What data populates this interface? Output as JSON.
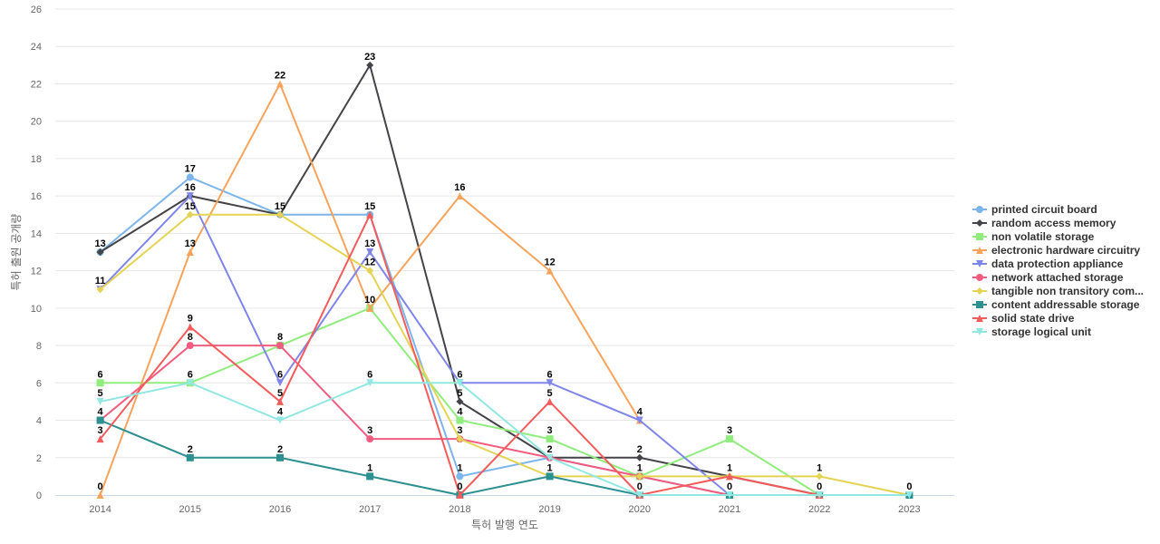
{
  "chart_data": {
    "type": "line",
    "xlabel": "특허 발행 연도",
    "ylabel": "특허 출원 공개량",
    "ylim": [
      0,
      26
    ],
    "yticks": [
      0,
      2,
      4,
      6,
      8,
      10,
      12,
      14,
      16,
      18,
      20,
      22,
      24,
      26
    ],
    "categories": [
      "2014",
      "2015",
      "2016",
      "2017",
      "2018",
      "2019",
      "2020",
      "2021",
      "2022",
      "2023"
    ],
    "grid": true,
    "legend_position": "right",
    "series": [
      {
        "name": "printed circuit board",
        "color": "#7cb5ec",
        "marker": "circle",
        "values": [
          13,
          17,
          15,
          15,
          1,
          2,
          1,
          0,
          0,
          null
        ]
      },
      {
        "name": "random access memory",
        "color": "#434348",
        "marker": "diamond",
        "values": [
          13,
          16,
          15,
          23,
          5,
          2,
          2,
          1,
          0,
          null
        ]
      },
      {
        "name": "non volatile storage",
        "color": "#90ed7d",
        "marker": "square",
        "values": [
          6,
          6,
          8,
          10,
          4,
          3,
          1,
          3,
          0,
          null
        ]
      },
      {
        "name": "electronic hardware circuitry",
        "color": "#f7a35c",
        "marker": "triangle",
        "values": [
          0,
          13,
          22,
          10,
          16,
          12,
          4,
          null,
          null,
          null
        ]
      },
      {
        "name": "data protection appliance",
        "color": "#8085e9",
        "marker": "triangle-down",
        "values": [
          11,
          16,
          6,
          13,
          6,
          6,
          4,
          0,
          null,
          null
        ]
      },
      {
        "name": "network attached storage",
        "color": "#f15c80",
        "marker": "circle",
        "values": [
          4,
          8,
          8,
          3,
          3,
          2,
          1,
          0,
          null,
          null
        ]
      },
      {
        "name": "tangible non transitory com...",
        "color": "#e4d354",
        "marker": "diamond",
        "values": [
          11,
          15,
          15,
          12,
          3,
          1,
          1,
          1,
          1,
          0
        ]
      },
      {
        "name": "content addressable storage",
        "color": "#2b908f",
        "marker": "square",
        "values": [
          4,
          2,
          2,
          1,
          0,
          1,
          0,
          0,
          0,
          0
        ]
      },
      {
        "name": "solid state drive",
        "color": "#f45b5b",
        "marker": "triangle",
        "values": [
          3,
          9,
          5,
          15,
          0,
          5,
          0,
          1,
          0,
          null
        ]
      },
      {
        "name": "storage logical unit",
        "color": "#91e8e1",
        "marker": "triangle-down",
        "values": [
          5,
          6,
          4,
          6,
          6,
          2,
          0,
          0,
          0,
          0
        ]
      }
    ],
    "data_labels": [
      {
        "category": "2014",
        "value": 13,
        "text": "13"
      },
      {
        "category": "2014",
        "value": 11,
        "text": "11"
      },
      {
        "category": "2014",
        "value": 6,
        "text": "6"
      },
      {
        "category": "2014",
        "value": 5,
        "text": "5"
      },
      {
        "category": "2014",
        "value": 4,
        "text": "4"
      },
      {
        "category": "2014",
        "value": 3,
        "text": "3"
      },
      {
        "category": "2014",
        "value": 0,
        "text": "0"
      },
      {
        "category": "2015",
        "value": 17,
        "text": "17"
      },
      {
        "category": "2015",
        "value": 16,
        "text": "16"
      },
      {
        "category": "2015",
        "value": 15,
        "text": "15"
      },
      {
        "category": "2015",
        "value": 13,
        "text": "13"
      },
      {
        "category": "2015",
        "value": 9,
        "text": "9"
      },
      {
        "category": "2015",
        "value": 8,
        "text": "8"
      },
      {
        "category": "2015",
        "value": 6,
        "text": "6"
      },
      {
        "category": "2015",
        "value": 2,
        "text": "2"
      },
      {
        "category": "2016",
        "value": 22,
        "text": "22"
      },
      {
        "category": "2016",
        "value": 15,
        "text": "15"
      },
      {
        "category": "2016",
        "value": 8,
        "text": "8"
      },
      {
        "category": "2016",
        "value": 6,
        "text": "6"
      },
      {
        "category": "2016",
        "value": 5,
        "text": "5"
      },
      {
        "category": "2016",
        "value": 4,
        "text": "4"
      },
      {
        "category": "2016",
        "value": 2,
        "text": "2"
      },
      {
        "category": "2017",
        "value": 23,
        "text": "23"
      },
      {
        "category": "2017",
        "value": 15,
        "text": "15"
      },
      {
        "category": "2017",
        "value": 13,
        "text": "13"
      },
      {
        "category": "2017",
        "value": 12,
        "text": "12"
      },
      {
        "category": "2017",
        "value": 10,
        "text": "10"
      },
      {
        "category": "2017",
        "value": 6,
        "text": "6"
      },
      {
        "category": "2017",
        "value": 3,
        "text": "3"
      },
      {
        "category": "2017",
        "value": 1,
        "text": "1"
      },
      {
        "category": "2018",
        "value": 16,
        "text": "16"
      },
      {
        "category": "2018",
        "value": 6,
        "text": "6"
      },
      {
        "category": "2018",
        "value": 5,
        "text": "5"
      },
      {
        "category": "2018",
        "value": 4,
        "text": "4"
      },
      {
        "category": "2018",
        "value": 3,
        "text": "3"
      },
      {
        "category": "2018",
        "value": 1,
        "text": "1"
      },
      {
        "category": "2018",
        "value": 0,
        "text": "0"
      },
      {
        "category": "2019",
        "value": 12,
        "text": "12"
      },
      {
        "category": "2019",
        "value": 6,
        "text": "6"
      },
      {
        "category": "2019",
        "value": 5,
        "text": "5"
      },
      {
        "category": "2019",
        "value": 3,
        "text": "3"
      },
      {
        "category": "2019",
        "value": 2,
        "text": "2"
      },
      {
        "category": "2019",
        "value": 1,
        "text": "1"
      },
      {
        "category": "2020",
        "value": 4,
        "text": "4"
      },
      {
        "category": "2020",
        "value": 2,
        "text": "2"
      },
      {
        "category": "2020",
        "value": 1,
        "text": "1"
      },
      {
        "category": "2020",
        "value": 0,
        "text": "0"
      },
      {
        "category": "2021",
        "value": 3,
        "text": "3"
      },
      {
        "category": "2021",
        "value": 1,
        "text": "1"
      },
      {
        "category": "2021",
        "value": 0,
        "text": "0"
      },
      {
        "category": "2022",
        "value": 1,
        "text": "1"
      },
      {
        "category": "2022",
        "value": 0,
        "text": "0"
      },
      {
        "category": "2023",
        "value": 0,
        "text": "0"
      }
    ]
  }
}
